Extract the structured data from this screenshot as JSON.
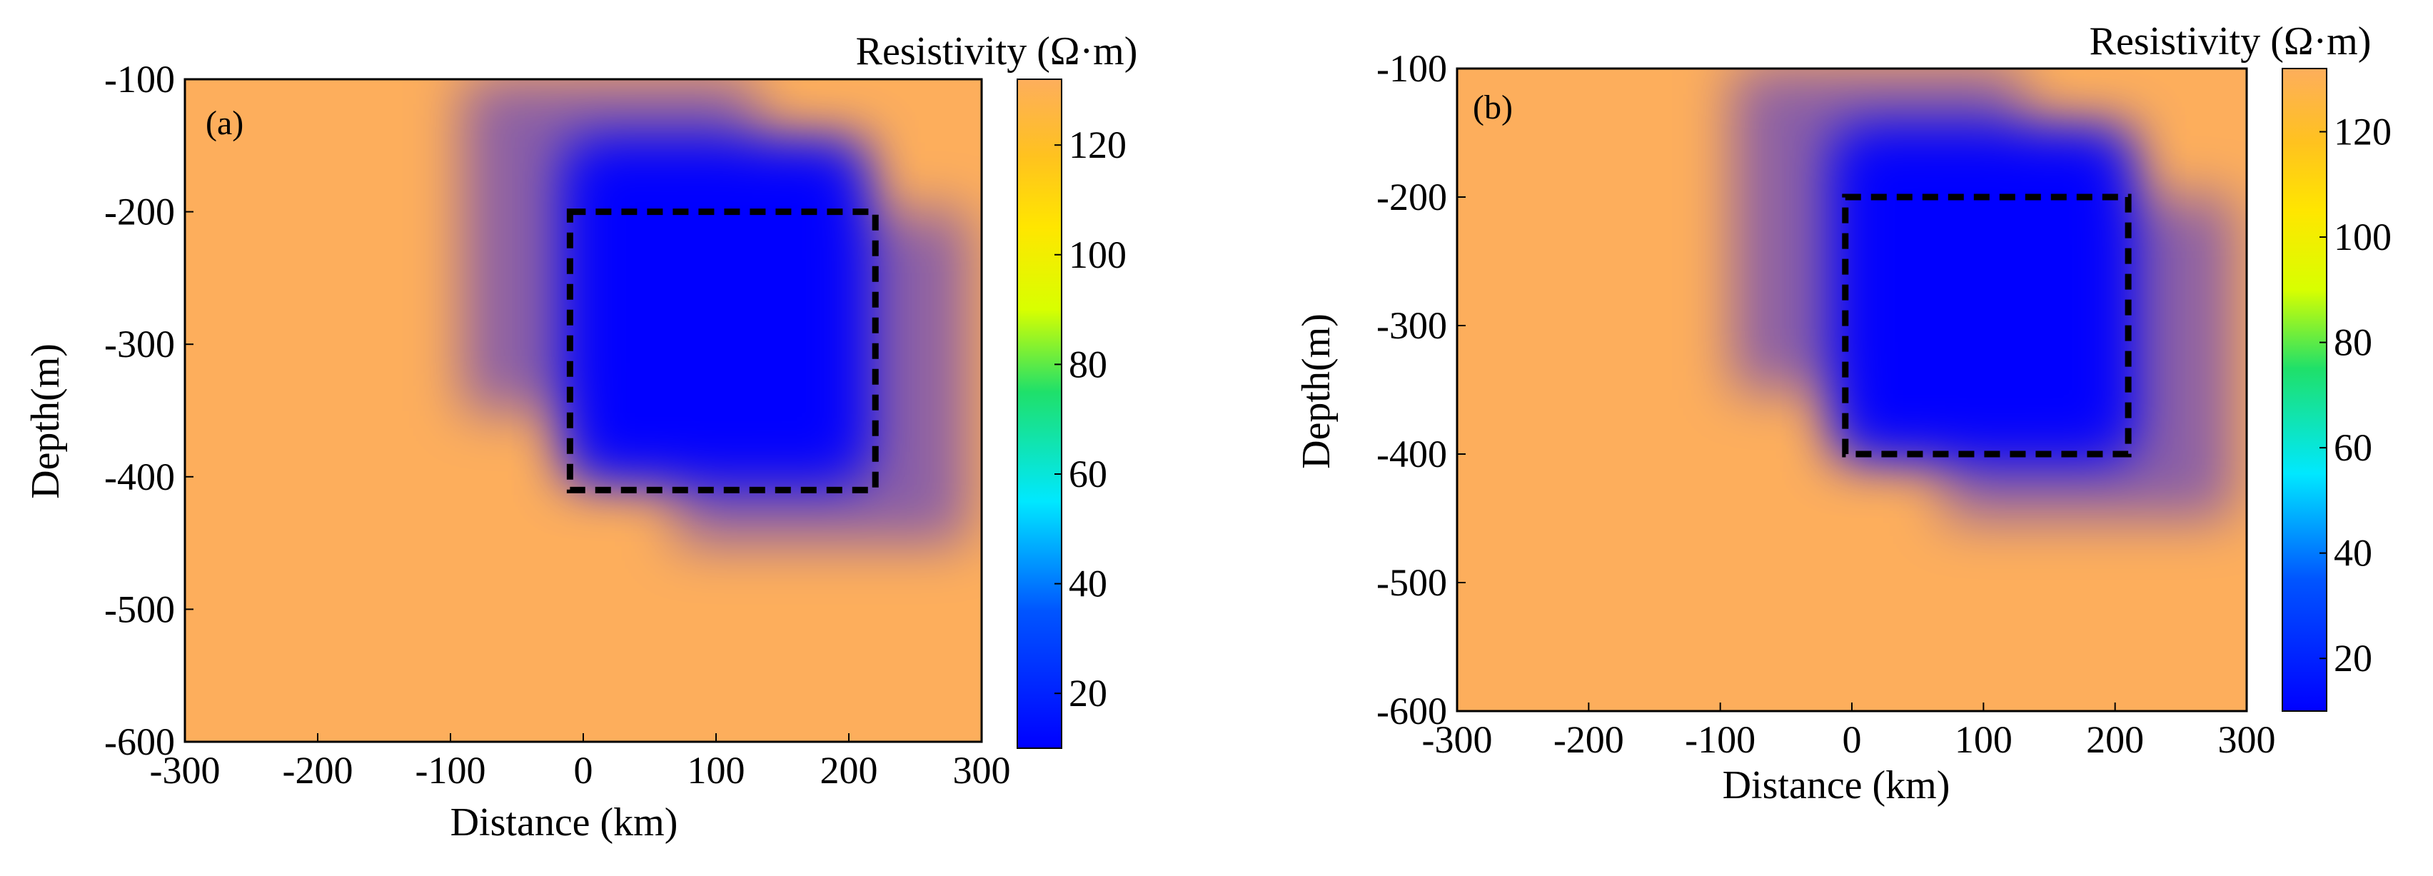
{
  "colorbar": {
    "min": 10,
    "max": 132,
    "ticks": [
      20,
      40,
      60,
      80,
      100,
      120
    ],
    "stops": [
      {
        "value": 10,
        "color": "#0000ff"
      },
      {
        "value": 35,
        "color": "#0055ff"
      },
      {
        "value": 55,
        "color": "#00e8ff"
      },
      {
        "value": 75,
        "color": "#1fe06a"
      },
      {
        "value": 90,
        "color": "#d8ff00"
      },
      {
        "value": 105,
        "color": "#ffe600"
      },
      {
        "value": 118,
        "color": "#ffc21f"
      },
      {
        "value": 132,
        "color": "#fdae5c"
      }
    ]
  },
  "colors": {
    "background": "#fdae5c",
    "anomaly": "#0000ff",
    "outline": "#000000"
  },
  "chart_data": [
    {
      "type": "heatmap",
      "panel_label": "(a)",
      "title": "Resistivity (Ω·m)",
      "xlabel": "Distance (km)",
      "ylabel": "Depth(m)",
      "xlim": [
        -300,
        300
      ],
      "ylim": [
        -600,
        -100
      ],
      "xticks": [
        -300,
        -200,
        -100,
        0,
        100,
        200,
        300
      ],
      "yticks": [
        -600,
        -500,
        -400,
        -300,
        -200,
        -100
      ],
      "background_value": 132,
      "anomaly_value": 10,
      "anomaly_core": {
        "x": [
          -10,
          210
        ],
        "depth": [
          -400,
          -150
        ]
      },
      "anomaly_smear": {
        "dx": -80,
        "dy": -50,
        "dx2": 80,
        "dy2": 50
      },
      "true_body": {
        "x": [
          -10,
          220
        ],
        "depth": [
          -410,
          -200
        ]
      }
    },
    {
      "type": "heatmap",
      "panel_label": "(b)",
      "title": "Resistivity (Ω·m)",
      "xlabel": "Distance (km)",
      "ylabel": "Depth(m)",
      "xlim": [
        -300,
        300
      ],
      "ylim": [
        -600,
        -100
      ],
      "xticks": [
        -300,
        -200,
        -100,
        0,
        100,
        200,
        300
      ],
      "yticks": [
        -600,
        -500,
        -400,
        -300,
        -200,
        -100
      ],
      "background_value": 132,
      "anomaly_value": 10,
      "anomaly_core": {
        "x": [
          -10,
          210
        ],
        "depth": [
          -400,
          -150
        ]
      },
      "anomaly_smear": {
        "dx": -80,
        "dy": -50,
        "dx2": 80,
        "dy2": 50
      },
      "true_body": {
        "x": [
          -5,
          210
        ],
        "depth": [
          -400,
          -200
        ]
      }
    }
  ]
}
